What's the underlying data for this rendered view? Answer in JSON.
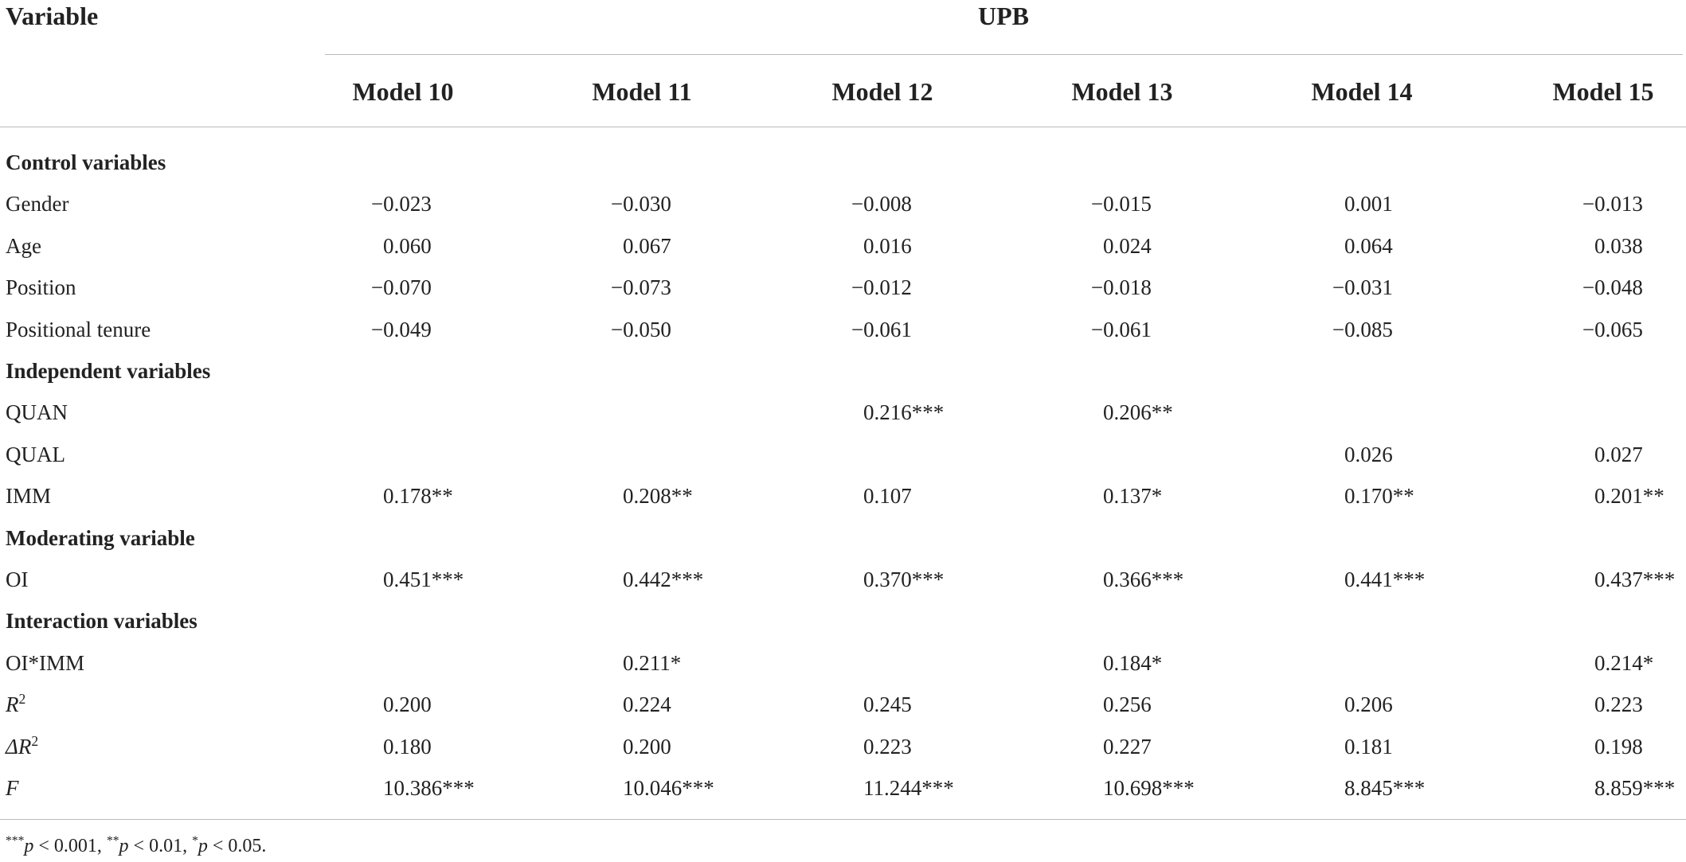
{
  "header": {
    "variable": "Variable",
    "group": "UPB",
    "models": [
      "Model 10",
      "Model 11",
      "Model 12",
      "Model 13",
      "Model 14",
      "Model 15"
    ]
  },
  "sections": [
    {
      "title": "Control variables",
      "rows": [
        {
          "label": "Gender",
          "values": [
            "−0.023",
            "−0.030",
            "−0.008",
            "−0.015",
            "0.001",
            "−0.013"
          ]
        },
        {
          "label": "Age",
          "values": [
            "0.060",
            "0.067",
            "0.016",
            "0.024",
            "0.064",
            "0.038"
          ]
        },
        {
          "label": "Position",
          "values": [
            "−0.070",
            "−0.073",
            "−0.012",
            "−0.018",
            "−0.031",
            "−0.048"
          ]
        },
        {
          "label": "Positional tenure",
          "values": [
            "−0.049",
            "−0.050",
            "−0.061",
            "−0.061",
            "−0.085",
            "−0.065"
          ]
        }
      ]
    },
    {
      "title": "Independent variables",
      "rows": [
        {
          "label": "QUAN",
          "values": [
            null,
            null,
            "0.216***",
            "0.206**",
            null,
            null
          ]
        },
        {
          "label": "QUAL",
          "values": [
            null,
            null,
            null,
            null,
            "0.026",
            "0.027"
          ]
        },
        {
          "label": "IMM",
          "values": [
            "0.178**",
            "0.208**",
            "0.107",
            "0.137*",
            "0.170**",
            "0.201**"
          ]
        }
      ]
    },
    {
      "title": "Moderating variable",
      "rows": [
        {
          "label": "OI",
          "values": [
            "0.451***",
            "0.442***",
            "0.370***",
            "0.366***",
            "0.441***",
            "0.437***"
          ]
        }
      ]
    },
    {
      "title": "Interaction variables",
      "rows": [
        {
          "label": "OI*IMM",
          "values": [
            null,
            "0.211*",
            null,
            "0.184*",
            null,
            "0.214*"
          ]
        },
        {
          "label": "R",
          "sup": "2",
          "italic": true,
          "values": [
            "0.200",
            "0.224",
            "0.245",
            "0.256",
            "0.206",
            "0.223"
          ]
        },
        {
          "label": "ΔR",
          "sup": "2",
          "italic": true,
          "values": [
            "0.180",
            "0.200",
            "0.223",
            "0.227",
            "0.181",
            "0.198"
          ]
        },
        {
          "label": "F",
          "italic": true,
          "values": [
            "10.386***",
            "10.046***",
            "11.244***",
            "10.698***",
            "8.845***",
            "8.859***"
          ]
        }
      ]
    }
  ],
  "footnote": [
    {
      "stars": "***",
      "var": "p",
      "rest": " < 0.001,"
    },
    {
      "stars": "**",
      "var": "p",
      "rest": " < 0.01,"
    },
    {
      "stars": "*",
      "var": "p",
      "rest": " < 0.05."
    }
  ]
}
